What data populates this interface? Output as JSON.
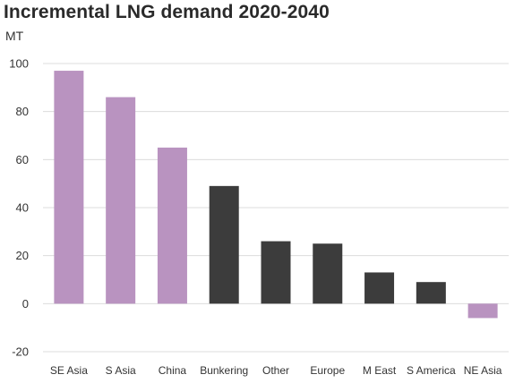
{
  "chart_data": {
    "type": "bar",
    "title": "Incremental LNG demand 2020-2040",
    "ylabel": "MT",
    "xlabel": "",
    "categories": [
      "SE Asia",
      "S Asia",
      "China",
      "Bunkering",
      "Other",
      "Europe",
      "M East",
      "S America",
      "NE Asia"
    ],
    "values": [
      97,
      86,
      65,
      49,
      26,
      25,
      13,
      9,
      -6
    ],
    "colors": [
      "#b993c0",
      "#b993c0",
      "#b993c0",
      "#3c3c3c",
      "#3c3c3c",
      "#3c3c3c",
      "#3c3c3c",
      "#3c3c3c",
      "#b993c0"
    ],
    "ylim": [
      -20,
      100
    ],
    "yticks": [
      -20,
      0,
      20,
      40,
      60,
      80,
      100
    ],
    "grid": true,
    "legend": "none"
  }
}
